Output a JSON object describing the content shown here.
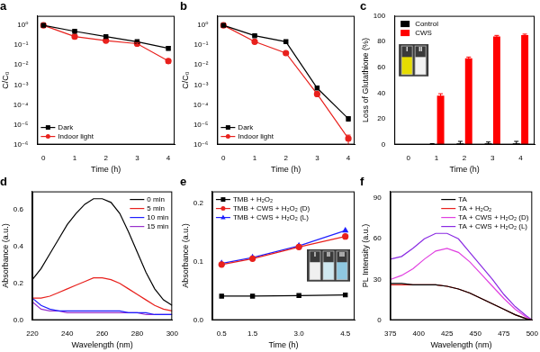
{
  "chart_data": [
    {
      "type": "line",
      "title": "a",
      "x_label": "Time (h)",
      "y_label": "C/C₀",
      "log": "y",
      "grid": false,
      "legend": "lower left",
      "xlim": [
        -0.2,
        4.2
      ],
      "xticks": [
        0,
        1,
        2,
        3,
        4
      ],
      "ylim": [
        1e-06,
        3
      ],
      "yticks": [
        {
          "value": 1e-06,
          "label": "10⁻⁶"
        },
        {
          "value": 1e-05,
          "label": "10⁻⁵"
        },
        {
          "value": 0.0001,
          "label": "10⁻⁴"
        },
        {
          "value": 0.001,
          "label": "10⁻³"
        },
        {
          "value": 0.01,
          "label": "10⁻²"
        },
        {
          "value": 0.1,
          "label": "10⁻¹"
        },
        {
          "value": 1,
          "label": "10⁰"
        }
      ],
      "x": [
        0,
        1,
        2,
        3,
        4
      ],
      "series": [
        {
          "name": "Dark",
          "color": "#000000",
          "marker": "square",
          "values": [
            1,
            0.5,
            0.27,
            0.15,
            0.07
          ],
          "errors": [
            0,
            0.03,
            0.02,
            0.02,
            0.015
          ]
        },
        {
          "name": "Indoor light",
          "color": "#e8211d",
          "marker": "circle",
          "values": [
            1,
            0.27,
            0.17,
            0.12,
            0.016
          ],
          "errors": [
            0,
            0.02,
            0.02,
            0.01,
            0.004
          ]
        }
      ]
    },
    {
      "type": "line",
      "title": "b",
      "x_label": "Time (h)",
      "y_label": "C/C₀",
      "log": "y",
      "grid": false,
      "legend": "lower left",
      "xlim": [
        -0.2,
        4.2
      ],
      "xticks": [
        0,
        1,
        2,
        3,
        4
      ],
      "ylim": [
        1e-06,
        3
      ],
      "yticks": [
        {
          "value": 1e-06,
          "label": "10⁻⁶"
        },
        {
          "value": 1e-05,
          "label": "10⁻⁵"
        },
        {
          "value": 0.0001,
          "label": "10⁻⁴"
        },
        {
          "value": 0.001,
          "label": "10⁻³"
        },
        {
          "value": 0.01,
          "label": "10⁻²"
        },
        {
          "value": 0.1,
          "label": "10⁻¹"
        },
        {
          "value": 1,
          "label": "10⁰"
        }
      ],
      "x": [
        0,
        1,
        2,
        3,
        4
      ],
      "series": [
        {
          "name": "Dark",
          "color": "#000000",
          "marker": "square",
          "values": [
            1,
            0.3,
            0.15,
            0.0007,
            2e-05
          ],
          "errors": [
            0,
            0.03,
            0.02,
            0.0001,
            5e-06
          ]
        },
        {
          "name": "Indoor light",
          "color": "#e8211d",
          "marker": "circle",
          "values": [
            1,
            0.15,
            0.04,
            0.00035,
            2e-06
          ],
          "errors": [
            0,
            0.02,
            0.005,
            5e-05,
            1e-06
          ]
        }
      ]
    },
    {
      "type": "bar",
      "title": "c",
      "x_label": "Time (h)",
      "y_label": "Loss of Glutathione (%)",
      "grid": false,
      "legend": "upper left",
      "categories": [
        "0",
        "1",
        "2",
        "3",
        "4"
      ],
      "ylim": [
        0,
        100
      ],
      "yticks": [
        0,
        20,
        40,
        60,
        80,
        100
      ],
      "series": [
        {
          "name": "Control",
          "color": "#000000",
          "values": [
            0,
            0.3,
            1,
            1,
            1
          ],
          "errors": [
            0,
            0.5,
            1.5,
            1,
            1.5
          ]
        },
        {
          "name": "CWS",
          "color": "#ff0000",
          "values": [
            0,
            38,
            67,
            84,
            85
          ],
          "errors": [
            0,
            1.5,
            1,
            0.8,
            0.8
          ]
        }
      ],
      "annotations": [
        "I",
        "II"
      ]
    },
    {
      "type": "line",
      "title": "d",
      "x_label": "Wavelength (nm)",
      "y_label": "Absorbance (a.u.)",
      "grid": false,
      "legend": "upper right",
      "xlim": [
        220,
        300
      ],
      "xticks": [
        220,
        240,
        260,
        280,
        300
      ],
      "ylim": [
        0,
        0.7
      ],
      "yticks": [
        {
          "value": 0,
          "label": "0.0"
        },
        0.2,
        0.4,
        0.6
      ],
      "x": [
        220,
        225,
        230,
        235,
        240,
        245,
        250,
        255,
        260,
        265,
        270,
        275,
        280,
        285,
        290,
        295,
        300
      ],
      "series": [
        {
          "name": "0 min",
          "color": "#000000",
          "marker": "none",
          "values": [
            0.22,
            0.28,
            0.36,
            0.44,
            0.52,
            0.58,
            0.63,
            0.66,
            0.66,
            0.64,
            0.58,
            0.48,
            0.37,
            0.26,
            0.17,
            0.11,
            0.08
          ]
        },
        {
          "name": "5 min",
          "color": "#e8211d",
          "marker": "none",
          "values": [
            0.12,
            0.12,
            0.13,
            0.15,
            0.17,
            0.19,
            0.21,
            0.23,
            0.23,
            0.22,
            0.2,
            0.17,
            0.14,
            0.11,
            0.08,
            0.06,
            0.05
          ]
        },
        {
          "name": "10 min",
          "color": "#1f1fff",
          "marker": "none",
          "values": [
            0.12,
            0.08,
            0.06,
            0.05,
            0.05,
            0.05,
            0.05,
            0.05,
            0.05,
            0.05,
            0.05,
            0.04,
            0.04,
            0.04,
            0.03,
            0.03,
            0.03
          ]
        },
        {
          "name": "15 min",
          "color": "#9932cc",
          "marker": "none",
          "values": [
            0.1,
            0.06,
            0.05,
            0.05,
            0.04,
            0.04,
            0.04,
            0.04,
            0.04,
            0.04,
            0.04,
            0.04,
            0.04,
            0.03,
            0.03,
            0.03,
            0.03
          ]
        }
      ]
    },
    {
      "type": "line",
      "title": "e",
      "x_label": "Time (h)",
      "y_label": "Absorbance (a.u.)",
      "grid": false,
      "legend": "upper left",
      "xlim": [
        0.2,
        4.8
      ],
      "xticks": [
        0.5,
        1.5,
        {
          "value": 3,
          "label": "3.0"
        },
        4.5
      ],
      "ylim": [
        0,
        0.22
      ],
      "yticks": [
        {
          "value": 0,
          "label": "0.0"
        },
        0.1,
        0.2
      ],
      "x": [
        0.5,
        1.5,
        3,
        4.5
      ],
      "series": [
        {
          "name": "TMB + H₂O₂",
          "color": "#000000",
          "marker": "square",
          "values": [
            0.041,
            0.041,
            0.042,
            0.043
          ]
        },
        {
          "name": "TMB + CWS + H₂O₂ (D)",
          "color": "#e8211d",
          "marker": "circle",
          "values": [
            0.095,
            0.105,
            0.125,
            0.143
          ]
        },
        {
          "name": "TMB + CWS + H₂O₂ (L)",
          "color": "#1f1fff",
          "marker": "triangle",
          "values": [
            0.097,
            0.107,
            0.127,
            0.153
          ]
        }
      ],
      "annotations": [
        "I",
        "II",
        "III"
      ]
    },
    {
      "type": "line",
      "title": "f",
      "x_label": "Wavelength (nm)",
      "y_label": "PL Intensity (a.u.)",
      "grid": false,
      "legend": "upper right",
      "xlim": [
        375,
        500
      ],
      "xticks": [
        375,
        400,
        425,
        450,
        475,
        500
      ],
      "ylim": [
        0,
        95
      ],
      "yticks": [
        0,
        30,
        60,
        90
      ],
      "x": [
        375,
        385,
        395,
        405,
        415,
        425,
        435,
        445,
        455,
        465,
        475,
        485,
        495,
        500
      ],
      "series": [
        {
          "name": "TA",
          "color": "#000000",
          "marker": "none",
          "values": [
            27,
            27,
            26,
            26,
            26,
            25,
            23,
            20,
            16,
            12,
            8,
            4,
            1,
            0
          ]
        },
        {
          "name": "TA + H₂O₂",
          "color": "#e8211d",
          "marker": "none",
          "values": [
            26,
            26,
            26,
            26,
            26,
            25,
            23,
            20,
            16,
            12,
            8,
            4,
            1,
            0
          ]
        },
        {
          "name": "TA + CWS + H₂O₂ (D)",
          "color": "#e040e0",
          "marker": "none",
          "values": [
            30,
            33,
            38,
            45,
            51,
            53,
            50,
            43,
            34,
            25,
            16,
            8,
            2,
            0
          ]
        },
        {
          "name": "TA + CWS + H₂O₂ (L)",
          "color": "#8a2be2",
          "marker": "none",
          "values": [
            45,
            47,
            53,
            60,
            64,
            64,
            60,
            50,
            40,
            30,
            19,
            10,
            3,
            0
          ]
        }
      ]
    }
  ]
}
